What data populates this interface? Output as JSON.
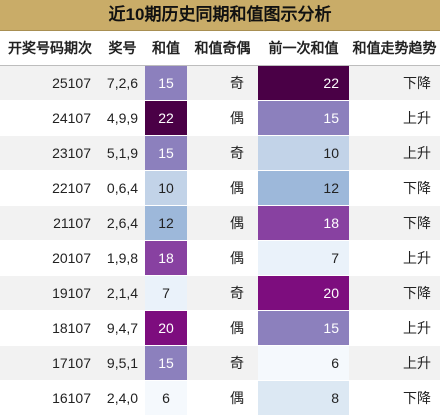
{
  "title": "近10期历史同期和值图示分析",
  "columns": [
    "开奖号码期次",
    "奖号",
    "和值",
    "和值奇偶",
    "前一次和值",
    "和值走势趋势"
  ],
  "rows": [
    {
      "period": "25107",
      "nums": "7,2,6",
      "sum": "15",
      "parity": "奇",
      "prev": "22",
      "trend": "下降",
      "sum_bg": "#8c80bd",
      "sum_fg": "#ffffff",
      "prev_bg": "#4a0046",
      "prev_fg": "#ffffff"
    },
    {
      "period": "24107",
      "nums": "4,9,9",
      "sum": "22",
      "parity": "偶",
      "prev": "15",
      "trend": "上升",
      "sum_bg": "#4a0046",
      "sum_fg": "#ffffff",
      "prev_bg": "#8c80bd",
      "prev_fg": "#ffffff"
    },
    {
      "period": "23107",
      "nums": "5,1,9",
      "sum": "15",
      "parity": "奇",
      "prev": "10",
      "trend": "上升",
      "sum_bg": "#8c80bd",
      "sum_fg": "#ffffff",
      "prev_bg": "#c2d3e8",
      "prev_fg": "#222222"
    },
    {
      "period": "22107",
      "nums": "0,6,4",
      "sum": "10",
      "parity": "偶",
      "prev": "12",
      "trend": "下降",
      "sum_bg": "#c2d3e8",
      "sum_fg": "#222222",
      "prev_bg": "#9db8da",
      "prev_fg": "#222222"
    },
    {
      "period": "21107",
      "nums": "2,6,4",
      "sum": "12",
      "parity": "偶",
      "prev": "18",
      "trend": "下降",
      "sum_bg": "#9db8da",
      "sum_fg": "#222222",
      "prev_bg": "#8841a1",
      "prev_fg": "#ffffff"
    },
    {
      "period": "20107",
      "nums": "1,9,8",
      "sum": "18",
      "parity": "偶",
      "prev": "7",
      "trend": "上升",
      "sum_bg": "#8841a1",
      "sum_fg": "#ffffff",
      "prev_bg": "#eaf2fa",
      "prev_fg": "#222222"
    },
    {
      "period": "19107",
      "nums": "2,1,4",
      "sum": "7",
      "parity": "奇",
      "prev": "20",
      "trend": "下降",
      "sum_bg": "#eaf2fa",
      "sum_fg": "#222222",
      "prev_bg": "#7d0d7e",
      "prev_fg": "#ffffff"
    },
    {
      "period": "18107",
      "nums": "9,4,7",
      "sum": "20",
      "parity": "偶",
      "prev": "15",
      "trend": "上升",
      "sum_bg": "#7d0d7e",
      "sum_fg": "#ffffff",
      "prev_bg": "#8c80bd",
      "prev_fg": "#ffffff"
    },
    {
      "period": "17107",
      "nums": "9,5,1",
      "sum": "15",
      "parity": "奇",
      "prev": "6",
      "trend": "上升",
      "sum_bg": "#8c80bd",
      "sum_fg": "#ffffff",
      "prev_bg": "#f5f9fd",
      "prev_fg": "#222222"
    },
    {
      "period": "16107",
      "nums": "2,4,0",
      "sum": "6",
      "parity": "偶",
      "prev": "8",
      "trend": "下降",
      "sum_bg": "#f5f9fd",
      "sum_fg": "#222222",
      "prev_bg": "#dce8f3",
      "prev_fg": "#222222"
    }
  ]
}
